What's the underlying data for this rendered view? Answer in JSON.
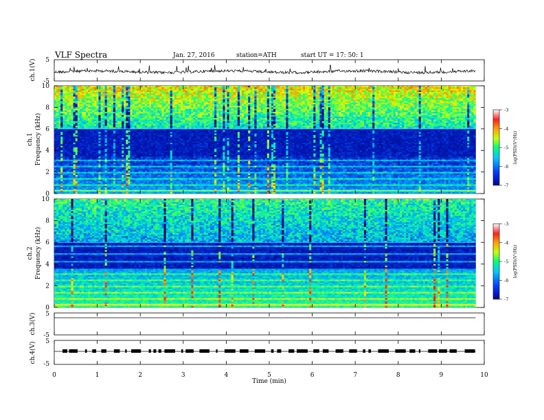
{
  "header": {
    "title": "VLF  Spectra",
    "date": "Jan. 27, 2016",
    "station": "station=ATH",
    "start": "start  UT  =   17: 50: 1"
  },
  "chart_data": [
    {
      "type": "line",
      "ylabel": "ch.1(V)",
      "ylim": [
        -5,
        5
      ],
      "yticks": [
        "5",
        "-5"
      ],
      "baseline": 0.2
    },
    {
      "type": "heatmap",
      "ylabel_lines": [
        "ch.1",
        "Frequency  (kHz)"
      ],
      "ylim": [
        0,
        10
      ],
      "yticks": [
        "0",
        "2",
        "4",
        "6",
        "8",
        "10"
      ],
      "colorbar": {
        "label": "log(PSD)(V²/Hz)",
        "ticks": [
          "-3",
          "-4",
          "-5",
          "-6",
          "-7"
        ],
        "range": [
          -7,
          -3
        ]
      }
    },
    {
      "type": "heatmap",
      "ylabel_lines": [
        "ch.2",
        "Frequency  (kHz)"
      ],
      "ylim": [
        0,
        10
      ],
      "yticks": [
        "0",
        "2",
        "4",
        "6",
        "8",
        "10"
      ],
      "colorbar": {
        "label": "log(PSD)(V²/Hz)",
        "ticks": [
          "-3",
          "-4",
          "-5",
          "-6",
          "-7"
        ],
        "range": [
          -7,
          -3
        ]
      }
    },
    {
      "type": "line",
      "ylabel": "ch.3(V)",
      "ylim": [
        -5,
        5
      ],
      "yticks": [
        "5",
        "-5"
      ],
      "baseline": 0
    },
    {
      "type": "line",
      "ylabel": "ch.4(V)",
      "ylim": [
        -5,
        5
      ],
      "yticks": [
        "5",
        "-5"
      ],
      "baseline": 0
    }
  ],
  "xaxis": {
    "label": "Time  (min)",
    "xlim": [
      0,
      10
    ],
    "ticks": [
      "0",
      "1",
      "2",
      "3",
      "4",
      "5",
      "6",
      "7",
      "8",
      "9",
      "10"
    ],
    "data_end": 9.8
  }
}
